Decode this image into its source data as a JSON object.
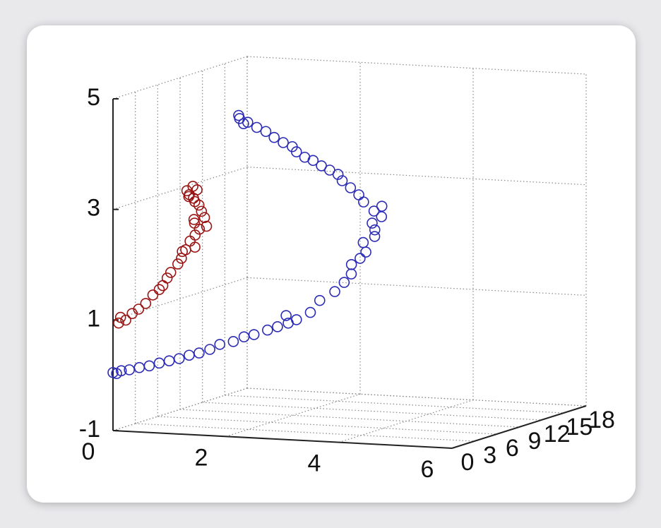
{
  "chart_data": {
    "type": "scatter3d",
    "xlim": [
      0,
      6
    ],
    "ylim": [
      0,
      18
    ],
    "zlim": [
      -1,
      5
    ],
    "xticks": [
      0,
      2,
      4,
      6
    ],
    "yticks": [
      0,
      3,
      6,
      9,
      12,
      15,
      18
    ],
    "zticks": [
      -1,
      1,
      3,
      5
    ],
    "grid": true,
    "series": [
      {
        "color": "#2b2bb5",
        "x": [
          0.0,
          0.05,
          0.12,
          0.25,
          0.4,
          0.55,
          0.7,
          0.85,
          1.0,
          1.15,
          1.3,
          1.45,
          1.6,
          1.8,
          1.95,
          2.1,
          2.3,
          2.45,
          2.6,
          2.72,
          2.55,
          2.9,
          3.0,
          3.2,
          3.3,
          3.4,
          3.35,
          3.45,
          3.5,
          3.4,
          3.55,
          3.5,
          3.4,
          3.5,
          3.3,
          3.4,
          3.05,
          2.9,
          2.7,
          2.5,
          2.4,
          2.2,
          2.0,
          1.8,
          1.6,
          1.4,
          1.3,
          1.1,
          0.9,
          0.7,
          0.5,
          0.3,
          0.13,
          0.1,
          0.2
        ],
        "y": [
          0.0,
          0.1,
          0.2,
          0.3,
          0.5,
          0.7,
          0.9,
          1.1,
          1.3,
          1.5,
          1.7,
          2.0,
          2.2,
          2.5,
          2.8,
          3.0,
          3.3,
          3.5,
          3.8,
          4.0,
          3.9,
          4.5,
          5.0,
          5.5,
          6.0,
          6.2,
          6.6,
          7.0,
          7.4,
          7.8,
          8.2,
          8.6,
          9.0,
          9.5,
          10,
          10.3,
          10.5,
          11,
          11.4,
          11.8,
          12,
          12.4,
          12.8,
          13.2,
          13.6,
          14,
          14.2,
          14.5,
          14.8,
          15.2,
          15.5,
          15.8,
          16,
          16.1,
          16
        ],
        "z": [
          0.05,
          0.03,
          0.08,
          0.1,
          0.14,
          0.17,
          0.22,
          0.26,
          0.3,
          0.36,
          0.4,
          0.46,
          0.55,
          0.6,
          0.68,
          0.72,
          0.8,
          0.86,
          0.92,
          0.98,
          1.05,
          1.1,
          1.3,
          1.45,
          1.6,
          1.75,
          1.9,
          2.0,
          2.1,
          2.25,
          2.35,
          2.45,
          2.55,
          2.65,
          2.72,
          2.8,
          2.85,
          2.95,
          3.05,
          3.15,
          3.25,
          3.3,
          3.35,
          3.42,
          3.45,
          3.52,
          3.6,
          3.65,
          3.72,
          3.8,
          3.85,
          3.92,
          3.97,
          4.02,
          3.88
        ]
      },
      {
        "color": "#9a1414",
        "x": [
          0.1,
          0.12,
          0.2,
          0.3,
          0.4,
          0.5,
          0.6,
          0.7,
          0.75,
          0.8,
          0.85,
          0.95,
          1.0,
          1.05,
          1.1,
          1.2,
          0.95,
          1.15,
          1.2,
          1.1,
          1.25,
          1.17,
          1.05,
          1.3,
          1.1,
          1.0,
          0.95,
          0.85,
          0.78,
          0.9,
          1.0,
          0.8
        ],
        "y": [
          0,
          0.1,
          0.2,
          0.3,
          0.4,
          0.6,
          0.8,
          0.9,
          1.0,
          1.2,
          1.3,
          1.5,
          1.6,
          1.8,
          2.0,
          1.9,
          2.1,
          2.3,
          2.5,
          2.6,
          2.8,
          3.0,
          2.9,
          2.7,
          3.2,
          3.4,
          3.6,
          3.8,
          4.0,
          3.9,
          3.7,
          4.1
        ],
        "z": [
          0.95,
          1.05,
          1.0,
          1.12,
          1.2,
          1.3,
          1.45,
          1.55,
          1.62,
          1.75,
          1.85,
          2.0,
          2.1,
          2.25,
          2.4,
          2.3,
          2.2,
          2.5,
          2.6,
          2.7,
          2.8,
          2.9,
          2.75,
          2.65,
          3.0,
          3.05,
          3.1,
          3.15,
          3.21,
          3.3,
          3.25,
          3.1
        ]
      }
    ]
  }
}
